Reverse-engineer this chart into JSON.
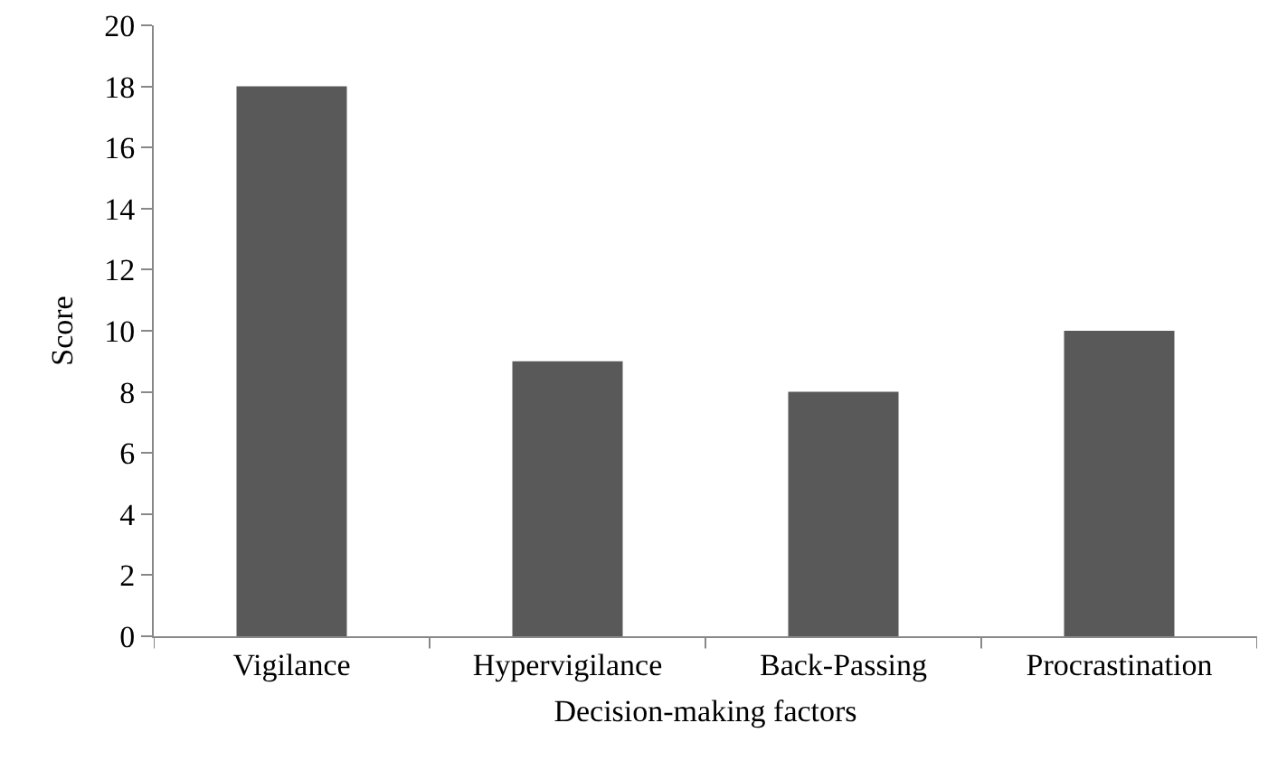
{
  "chart_data": {
    "type": "bar",
    "xlabel": "Decision-making factors",
    "ylabel": "Score",
    "categories": [
      "Vigilance",
      "Hypervigilance",
      "Back-Passing",
      "Procrastination"
    ],
    "values": [
      18,
      9,
      8,
      10
    ],
    "color": "#595959",
    "ylim": [
      0,
      20
    ],
    "yticks": [
      0,
      2,
      4,
      6,
      8,
      10,
      12,
      14,
      16,
      18,
      20
    ]
  }
}
